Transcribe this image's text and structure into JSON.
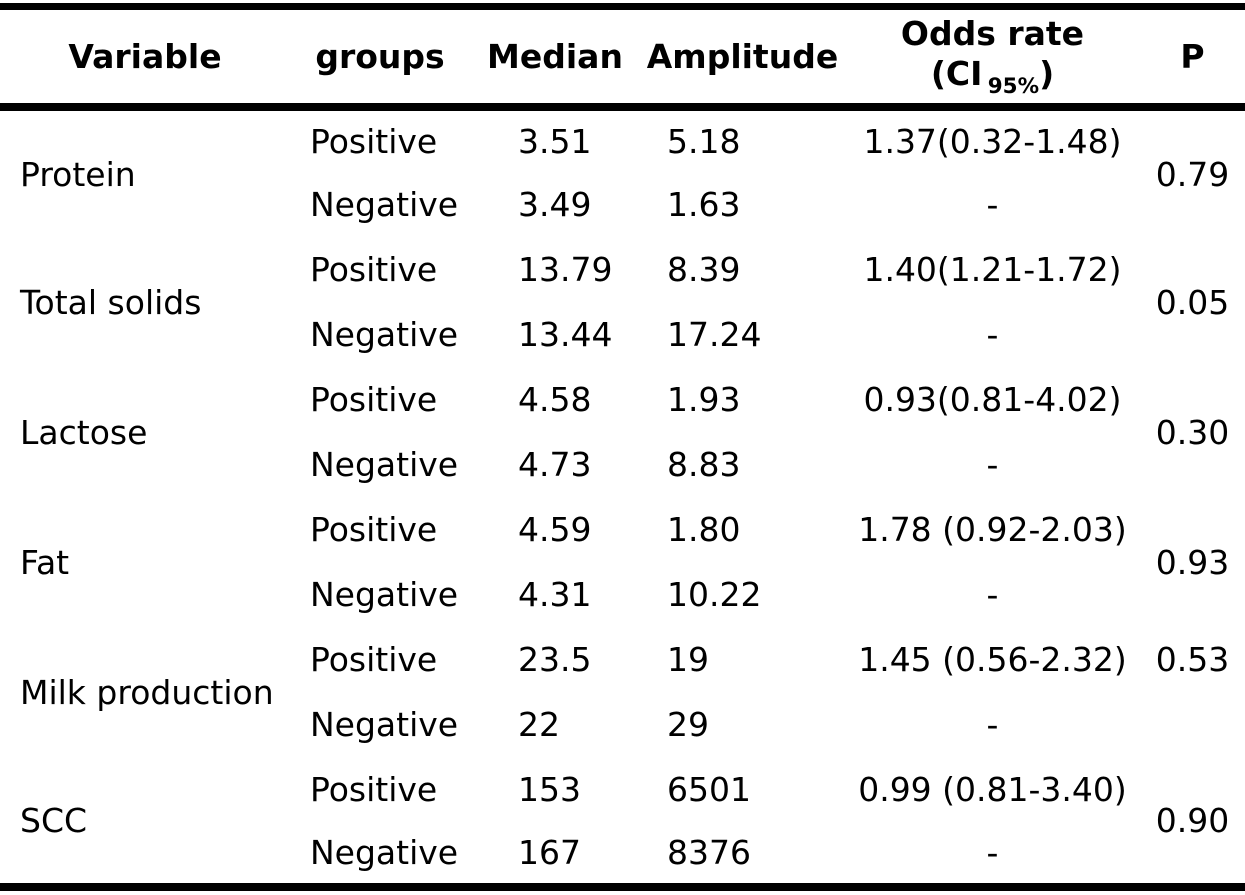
{
  "page": {
    "background_color": "#ffffff",
    "text_color": "#000000",
    "border_color": "#000000"
  },
  "table": {
    "headers": {
      "variable": "Variable",
      "groups": "groups",
      "median": "Median",
      "amplitude": "Amplitude",
      "odds_line1": "Odds rate",
      "odds_ci_prefix": "(CI",
      "odds_ci_sub": "95%",
      "odds_ci_suffix": ")",
      "p": "P"
    },
    "rows": [
      {
        "variable": "Protein",
        "p": "0.79",
        "positive": {
          "group": "Positive",
          "median": "3.51",
          "amplitude": "5.18",
          "odds": "1.37(0.32-1.48)"
        },
        "negative": {
          "group": "Negative",
          "median": "3.49",
          "amplitude": "1.63",
          "odds": "-"
        }
      },
      {
        "variable": "Total solids",
        "p": "0.05",
        "positive": {
          "group": "Positive",
          "median": "13.79",
          "amplitude": "8.39",
          "odds": "1.40(1.21-1.72)"
        },
        "negative": {
          "group": "Negative",
          "median": "13.44",
          "amplitude": "17.24",
          "odds": "-"
        }
      },
      {
        "variable": "Lactose",
        "p": "0.30",
        "positive": {
          "group": "Positive",
          "median": "4.58",
          "amplitude": "1.93",
          "odds": "0.93(0.81-4.02)"
        },
        "negative": {
          "group": "Negative",
          "median": "4.73",
          "amplitude": "8.83",
          "odds": "-"
        }
      },
      {
        "variable": "Fat",
        "p": "0.93",
        "positive": {
          "group": "Positive",
          "median": "4.59",
          "amplitude": "1.80",
          "odds": "1.78 (0.92-2.03)"
        },
        "negative": {
          "group": "Negative",
          "median": "4.31",
          "amplitude": "10.22",
          "odds": "-"
        }
      },
      {
        "variable": "Milk production",
        "p": "0.53",
        "positive": {
          "group": "Positive",
          "median": "23.5",
          "amplitude": "19",
          "odds": "1.45 (0.56-2.32)"
        },
        "negative": {
          "group": "Negative",
          "median": "22",
          "amplitude": "29",
          "odds": "-"
        }
      },
      {
        "variable": "SCC",
        "p": "0.90",
        "positive": {
          "group": "Positive",
          "median": "153",
          "amplitude": "6501",
          "odds": "0.99 (0.81-3.40)"
        },
        "negative": {
          "group": "Negative",
          "median": "167",
          "amplitude": "8376",
          "odds": "-"
        }
      }
    ]
  }
}
